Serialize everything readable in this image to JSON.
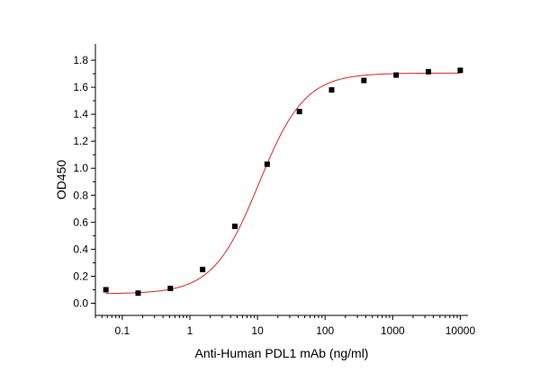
{
  "chart_data": {
    "type": "scatter",
    "title": "",
    "xlabel": "Anti-Human PDL1 mAb (ng/ml)",
    "ylabel": "OD450",
    "xscale": "log",
    "xlim": [
      0.04,
      13000
    ],
    "ylim": [
      -0.09,
      1.92
    ],
    "grid": false,
    "legend": "none",
    "x_ticks": [
      {
        "value": 0.1,
        "label": "0.1"
      },
      {
        "value": 1,
        "label": "1"
      },
      {
        "value": 10,
        "label": "10"
      },
      {
        "value": 100,
        "label": "100"
      },
      {
        "value": 1000,
        "label": "1000"
      },
      {
        "value": 10000,
        "label": "10000"
      }
    ],
    "y_ticks": [
      {
        "value": 0.0,
        "label": "0.0"
      },
      {
        "value": 0.2,
        "label": "0.2"
      },
      {
        "value": 0.4,
        "label": "0.4"
      },
      {
        "value": 0.6,
        "label": "0.6"
      },
      {
        "value": 0.8,
        "label": "0.8"
      },
      {
        "value": 1.0,
        "label": "1.0"
      },
      {
        "value": 1.2,
        "label": "1.2"
      },
      {
        "value": 1.4,
        "label": "1.4"
      },
      {
        "value": 1.6,
        "label": "1.6"
      },
      {
        "value": 1.8,
        "label": "1.8"
      }
    ],
    "series": [
      {
        "marker": "square",
        "color": "#000000",
        "points": [
          {
            "x": 0.0572,
            "y": 0.1
          },
          {
            "x": 0.1715,
            "y": 0.075
          },
          {
            "x": 0.514,
            "y": 0.11
          },
          {
            "x": 1.543,
            "y": 0.25
          },
          {
            "x": 4.63,
            "y": 0.57
          },
          {
            "x": 13.9,
            "y": 1.03
          },
          {
            "x": 41.7,
            "y": 1.42
          },
          {
            "x": 125,
            "y": 1.58
          },
          {
            "x": 375,
            "y": 1.65
          },
          {
            "x": 1125,
            "y": 1.69
          },
          {
            "x": 3375,
            "y": 1.715
          },
          {
            "x": 10000,
            "y": 1.725
          }
        ]
      }
    ],
    "fit": {
      "model": "4PL",
      "color": "#d62728",
      "bottom": 0.07,
      "top": 1.705,
      "ec50": 10.5,
      "hill": 1.28
    }
  }
}
